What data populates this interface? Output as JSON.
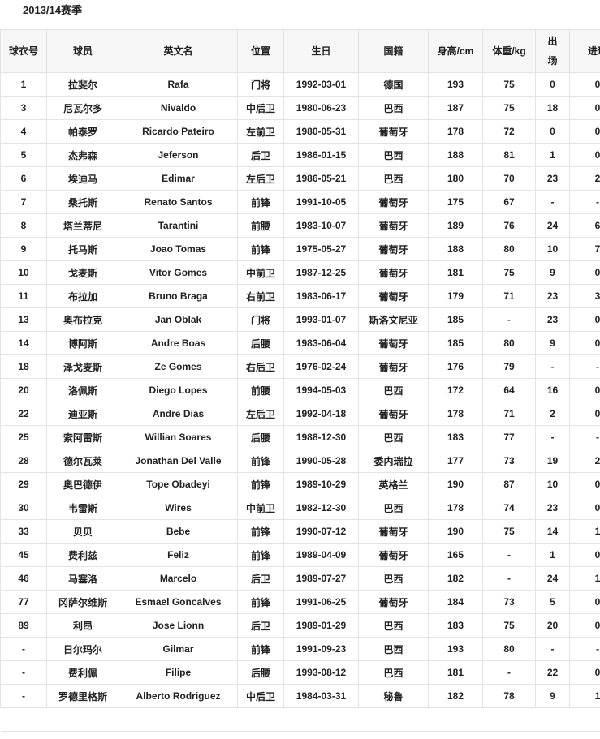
{
  "title": "2013/14赛季",
  "columns": [
    "球衣号",
    "球员",
    "英文名",
    "位置",
    "生日",
    "国籍",
    "身高/cm",
    "体重/kg",
    "出场",
    "进球"
  ],
  "rows": [
    [
      "1",
      "拉斐尔",
      "Rafa",
      "门将",
      "1992-03-01",
      "德国",
      "193",
      "75",
      "0",
      "0"
    ],
    [
      "3",
      "尼瓦尔多",
      "Nivaldo",
      "中后卫",
      "1980-06-23",
      "巴西",
      "187",
      "75",
      "18",
      "0"
    ],
    [
      "4",
      "帕泰罗",
      "Ricardo Pateiro",
      "左前卫",
      "1980-05-31",
      "葡萄牙",
      "178",
      "72",
      "0",
      "0"
    ],
    [
      "5",
      "杰弗森",
      "Jeferson",
      "后卫",
      "1986-01-15",
      "巴西",
      "188",
      "81",
      "1",
      "0"
    ],
    [
      "6",
      "埃迪马",
      "Edimar",
      "左后卫",
      "1986-05-21",
      "巴西",
      "180",
      "70",
      "23",
      "2"
    ],
    [
      "7",
      "桑托斯",
      "Renato Santos",
      "前锋",
      "1991-10-05",
      "葡萄牙",
      "175",
      "67",
      "-",
      "-"
    ],
    [
      "8",
      "塔兰蒂尼",
      "Tarantini",
      "前腰",
      "1983-10-07",
      "葡萄牙",
      "189",
      "76",
      "24",
      "6"
    ],
    [
      "9",
      "托马斯",
      "Joao Tomas",
      "前锋",
      "1975-05-27",
      "葡萄牙",
      "188",
      "80",
      "10",
      "7"
    ],
    [
      "10",
      "戈麦斯",
      "Vitor Gomes",
      "中前卫",
      "1987-12-25",
      "葡萄牙",
      "181",
      "75",
      "9",
      "0"
    ],
    [
      "11",
      "布拉加",
      "Bruno Braga",
      "右前卫",
      "1983-06-17",
      "葡萄牙",
      "179",
      "71",
      "23",
      "3"
    ],
    [
      "13",
      "奥布拉克",
      "Jan Oblak",
      "门将",
      "1993-01-07",
      "斯洛文尼亚",
      "185",
      "-",
      "23",
      "0"
    ],
    [
      "14",
      "博阿斯",
      "Andre Boas",
      "后腰",
      "1983-06-04",
      "葡萄牙",
      "185",
      "80",
      "9",
      "0"
    ],
    [
      "18",
      "泽戈麦斯",
      "Ze Gomes",
      "右后卫",
      "1976-02-24",
      "葡萄牙",
      "176",
      "79",
      "-",
      "-"
    ],
    [
      "20",
      "洛佩斯",
      "Diego Lopes",
      "前腰",
      "1994-05-03",
      "巴西",
      "172",
      "64",
      "16",
      "0"
    ],
    [
      "22",
      "迪亚斯",
      "Andre Dias",
      "左后卫",
      "1992-04-18",
      "葡萄牙",
      "178",
      "71",
      "2",
      "0"
    ],
    [
      "25",
      "索阿雷斯",
      "Willian Soares",
      "后腰",
      "1988-12-30",
      "巴西",
      "183",
      "77",
      "-",
      "-"
    ],
    [
      "28",
      "德尔瓦莱",
      "Jonathan Del Valle",
      "前锋",
      "1990-05-28",
      "委内瑞拉",
      "177",
      "73",
      "19",
      "2"
    ],
    [
      "29",
      "奥巴德伊",
      "Tope Obadeyi",
      "前锋",
      "1989-10-29",
      "英格兰",
      "190",
      "87",
      "10",
      "0"
    ],
    [
      "30",
      "韦雷斯",
      "Wires",
      "中前卫",
      "1982-12-30",
      "巴西",
      "178",
      "74",
      "23",
      "0"
    ],
    [
      "33",
      "贝贝",
      "Bebe",
      "前锋",
      "1990-07-12",
      "葡萄牙",
      "190",
      "75",
      "14",
      "1"
    ],
    [
      "45",
      "费利兹",
      "Feliz",
      "前锋",
      "1989-04-09",
      "葡萄牙",
      "165",
      "-",
      "1",
      "0"
    ],
    [
      "46",
      "马塞洛",
      "Marcelo",
      "后卫",
      "1989-07-27",
      "巴西",
      "182",
      "-",
      "24",
      "1"
    ],
    [
      "77",
      "冈萨尔维斯",
      "Esmael Goncalves",
      "前锋",
      "1991-06-25",
      "葡萄牙",
      "184",
      "73",
      "5",
      "0"
    ],
    [
      "89",
      "利昂",
      "Jose Lionn",
      "后卫",
      "1989-01-29",
      "巴西",
      "183",
      "75",
      "20",
      "0"
    ],
    [
      "-",
      "日尔玛尔",
      "Gilmar",
      "前锋",
      "1991-09-23",
      "巴西",
      "193",
      "80",
      "-",
      "-"
    ],
    [
      "-",
      "费利佩",
      "Filipe",
      "后腰",
      "1993-08-12",
      "巴西",
      "181",
      "-",
      "22",
      "0"
    ],
    [
      "-",
      "罗德里格斯",
      "Alberto Rodriguez",
      "中后卫",
      "1984-03-31",
      "秘鲁",
      "182",
      "78",
      "9",
      "1"
    ]
  ]
}
